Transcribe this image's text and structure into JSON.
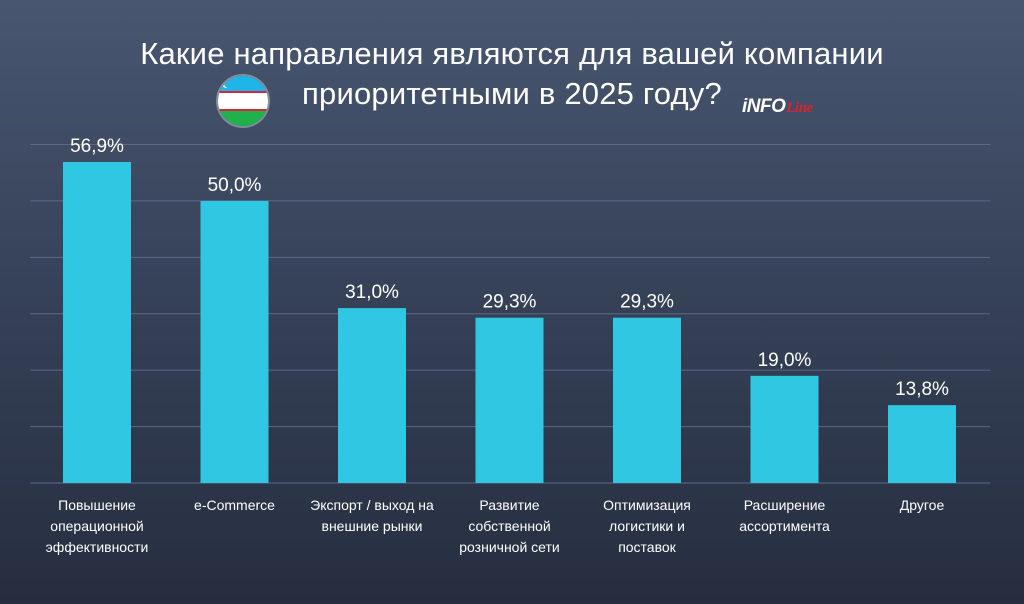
{
  "header": {
    "title_line1": "Какие направления являются для вашей компании",
    "title_line2": "приоритетными в 2025 году?",
    "brand_main": "iNFO",
    "brand_sub": "Line"
  },
  "colors": {
    "bar": "#30c7e2",
    "background_top": "#485670",
    "background_bottom": "#262d3f",
    "gridline": "#5a6a86",
    "text": "#ffffff",
    "brand_accent": "#e0202c"
  },
  "icons": {
    "flag": "uzbekistan-flag-icon"
  },
  "chart_data": {
    "type": "bar",
    "title": "Какие направления являются для вашей компании приоритетными в 2025 году?",
    "categories": [
      [
        "Повышение",
        "операционной",
        "эффективности"
      ],
      [
        "e-Commerce"
      ],
      [
        "Экспорт / выход на",
        "внешние рынки"
      ],
      [
        "Развитие",
        "собственной",
        "розничной сети"
      ],
      [
        "Оптимизация",
        "логистики и",
        "поставок"
      ],
      [
        "Расширение",
        "ассортимента"
      ],
      [
        "Другое"
      ]
    ],
    "values": [
      56.9,
      50.0,
      31.0,
      29.3,
      29.3,
      19.0,
      13.8
    ],
    "value_labels": [
      "56,9%",
      "50,0%",
      "31,0%",
      "29,3%",
      "29,3%",
      "19,0%",
      "13,8%"
    ],
    "ylim": [
      0,
      60
    ],
    "grid": true,
    "legend": "none"
  }
}
